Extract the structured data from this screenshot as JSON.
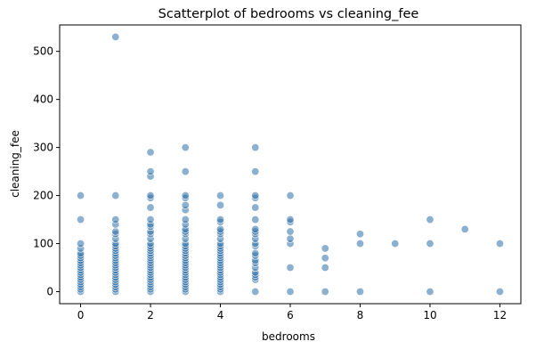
{
  "chart_data": {
    "type": "scatter",
    "title": "Scatterplot of bedrooms vs cleaning_fee",
    "xlabel": "bedrooms",
    "ylabel": "cleaning_fee",
    "xlim": [
      -0.6,
      12.6
    ],
    "ylim": [
      -25,
      555
    ],
    "xticks": [
      0,
      2,
      4,
      6,
      8,
      10,
      12
    ],
    "yticks": [
      0,
      100,
      200,
      300,
      400,
      500
    ],
    "grid": false,
    "legend": false,
    "colors": {
      "point": "#2e6fa7",
      "point_edge": "#ffffff",
      "axis": "#000000"
    },
    "points": [
      [
        0,
        0
      ],
      [
        0,
        5
      ],
      [
        0,
        10
      ],
      [
        0,
        15
      ],
      [
        0,
        20
      ],
      [
        0,
        25
      ],
      [
        0,
        30
      ],
      [
        0,
        35
      ],
      [
        0,
        40
      ],
      [
        0,
        45
      ],
      [
        0,
        50
      ],
      [
        0,
        55
      ],
      [
        0,
        60
      ],
      [
        0,
        65
      ],
      [
        0,
        70
      ],
      [
        0,
        75
      ],
      [
        0,
        80
      ],
      [
        0,
        90
      ],
      [
        0,
        100
      ],
      [
        0,
        150
      ],
      [
        0,
        200
      ],
      [
        1,
        0
      ],
      [
        1,
        5
      ],
      [
        1,
        10
      ],
      [
        1,
        15
      ],
      [
        1,
        20
      ],
      [
        1,
        25
      ],
      [
        1,
        30
      ],
      [
        1,
        35
      ],
      [
        1,
        40
      ],
      [
        1,
        45
      ],
      [
        1,
        50
      ],
      [
        1,
        55
      ],
      [
        1,
        60
      ],
      [
        1,
        65
      ],
      [
        1,
        70
      ],
      [
        1,
        75
      ],
      [
        1,
        80
      ],
      [
        1,
        85
      ],
      [
        1,
        90
      ],
      [
        1,
        95
      ],
      [
        1,
        100
      ],
      [
        1,
        110
      ],
      [
        1,
        120
      ],
      [
        1,
        125
      ],
      [
        1,
        140
      ],
      [
        1,
        150
      ],
      [
        1,
        200
      ],
      [
        1,
        530
      ],
      [
        2,
        0
      ],
      [
        2,
        5
      ],
      [
        2,
        10
      ],
      [
        2,
        15
      ],
      [
        2,
        20
      ],
      [
        2,
        25
      ],
      [
        2,
        30
      ],
      [
        2,
        35
      ],
      [
        2,
        40
      ],
      [
        2,
        45
      ],
      [
        2,
        50
      ],
      [
        2,
        55
      ],
      [
        2,
        60
      ],
      [
        2,
        65
      ],
      [
        2,
        70
      ],
      [
        2,
        75
      ],
      [
        2,
        80
      ],
      [
        2,
        85
      ],
      [
        2,
        90
      ],
      [
        2,
        95
      ],
      [
        2,
        100
      ],
      [
        2,
        110
      ],
      [
        2,
        120
      ],
      [
        2,
        125
      ],
      [
        2,
        135
      ],
      [
        2,
        140
      ],
      [
        2,
        150
      ],
      [
        2,
        175
      ],
      [
        2,
        195
      ],
      [
        2,
        200
      ],
      [
        2,
        240
      ],
      [
        2,
        250
      ],
      [
        2,
        290
      ],
      [
        3,
        0
      ],
      [
        3,
        5
      ],
      [
        3,
        10
      ],
      [
        3,
        15
      ],
      [
        3,
        20
      ],
      [
        3,
        25
      ],
      [
        3,
        30
      ],
      [
        3,
        35
      ],
      [
        3,
        40
      ],
      [
        3,
        45
      ],
      [
        3,
        50
      ],
      [
        3,
        55
      ],
      [
        3,
        60
      ],
      [
        3,
        65
      ],
      [
        3,
        70
      ],
      [
        3,
        75
      ],
      [
        3,
        80
      ],
      [
        3,
        85
      ],
      [
        3,
        90
      ],
      [
        3,
        95
      ],
      [
        3,
        100
      ],
      [
        3,
        110
      ],
      [
        3,
        120
      ],
      [
        3,
        125
      ],
      [
        3,
        130
      ],
      [
        3,
        140
      ],
      [
        3,
        150
      ],
      [
        3,
        170
      ],
      [
        3,
        180
      ],
      [
        3,
        195
      ],
      [
        3,
        200
      ],
      [
        3,
        250
      ],
      [
        3,
        300
      ],
      [
        4,
        0
      ],
      [
        4,
        5
      ],
      [
        4,
        10
      ],
      [
        4,
        15
      ],
      [
        4,
        20
      ],
      [
        4,
        25
      ],
      [
        4,
        30
      ],
      [
        4,
        35
      ],
      [
        4,
        40
      ],
      [
        4,
        45
      ],
      [
        4,
        50
      ],
      [
        4,
        55
      ],
      [
        4,
        60
      ],
      [
        4,
        65
      ],
      [
        4,
        70
      ],
      [
        4,
        75
      ],
      [
        4,
        80
      ],
      [
        4,
        85
      ],
      [
        4,
        90
      ],
      [
        4,
        95
      ],
      [
        4,
        100
      ],
      [
        4,
        110
      ],
      [
        4,
        120
      ],
      [
        4,
        125
      ],
      [
        4,
        130
      ],
      [
        4,
        145
      ],
      [
        4,
        150
      ],
      [
        4,
        180
      ],
      [
        4,
        200
      ],
      [
        5,
        0
      ],
      [
        5,
        25
      ],
      [
        5,
        30
      ],
      [
        5,
        35
      ],
      [
        5,
        40
      ],
      [
        5,
        50
      ],
      [
        5,
        60
      ],
      [
        5,
        65
      ],
      [
        5,
        75
      ],
      [
        5,
        80
      ],
      [
        5,
        95
      ],
      [
        5,
        100
      ],
      [
        5,
        110
      ],
      [
        5,
        120
      ],
      [
        5,
        125
      ],
      [
        5,
        130
      ],
      [
        5,
        150
      ],
      [
        5,
        175
      ],
      [
        5,
        195
      ],
      [
        5,
        200
      ],
      [
        5,
        250
      ],
      [
        5,
        300
      ],
      [
        6,
        0
      ],
      [
        6,
        50
      ],
      [
        6,
        100
      ],
      [
        6,
        110
      ],
      [
        6,
        125
      ],
      [
        6,
        145
      ],
      [
        6,
        150
      ],
      [
        6,
        200
      ],
      [
        7,
        0
      ],
      [
        7,
        50
      ],
      [
        7,
        70
      ],
      [
        7,
        90
      ],
      [
        8,
        0
      ],
      [
        8,
        100
      ],
      [
        8,
        120
      ],
      [
        9,
        100
      ],
      [
        10,
        0
      ],
      [
        10,
        100
      ],
      [
        10,
        150
      ],
      [
        11,
        130
      ],
      [
        12,
        0
      ],
      [
        12,
        100
      ]
    ]
  }
}
